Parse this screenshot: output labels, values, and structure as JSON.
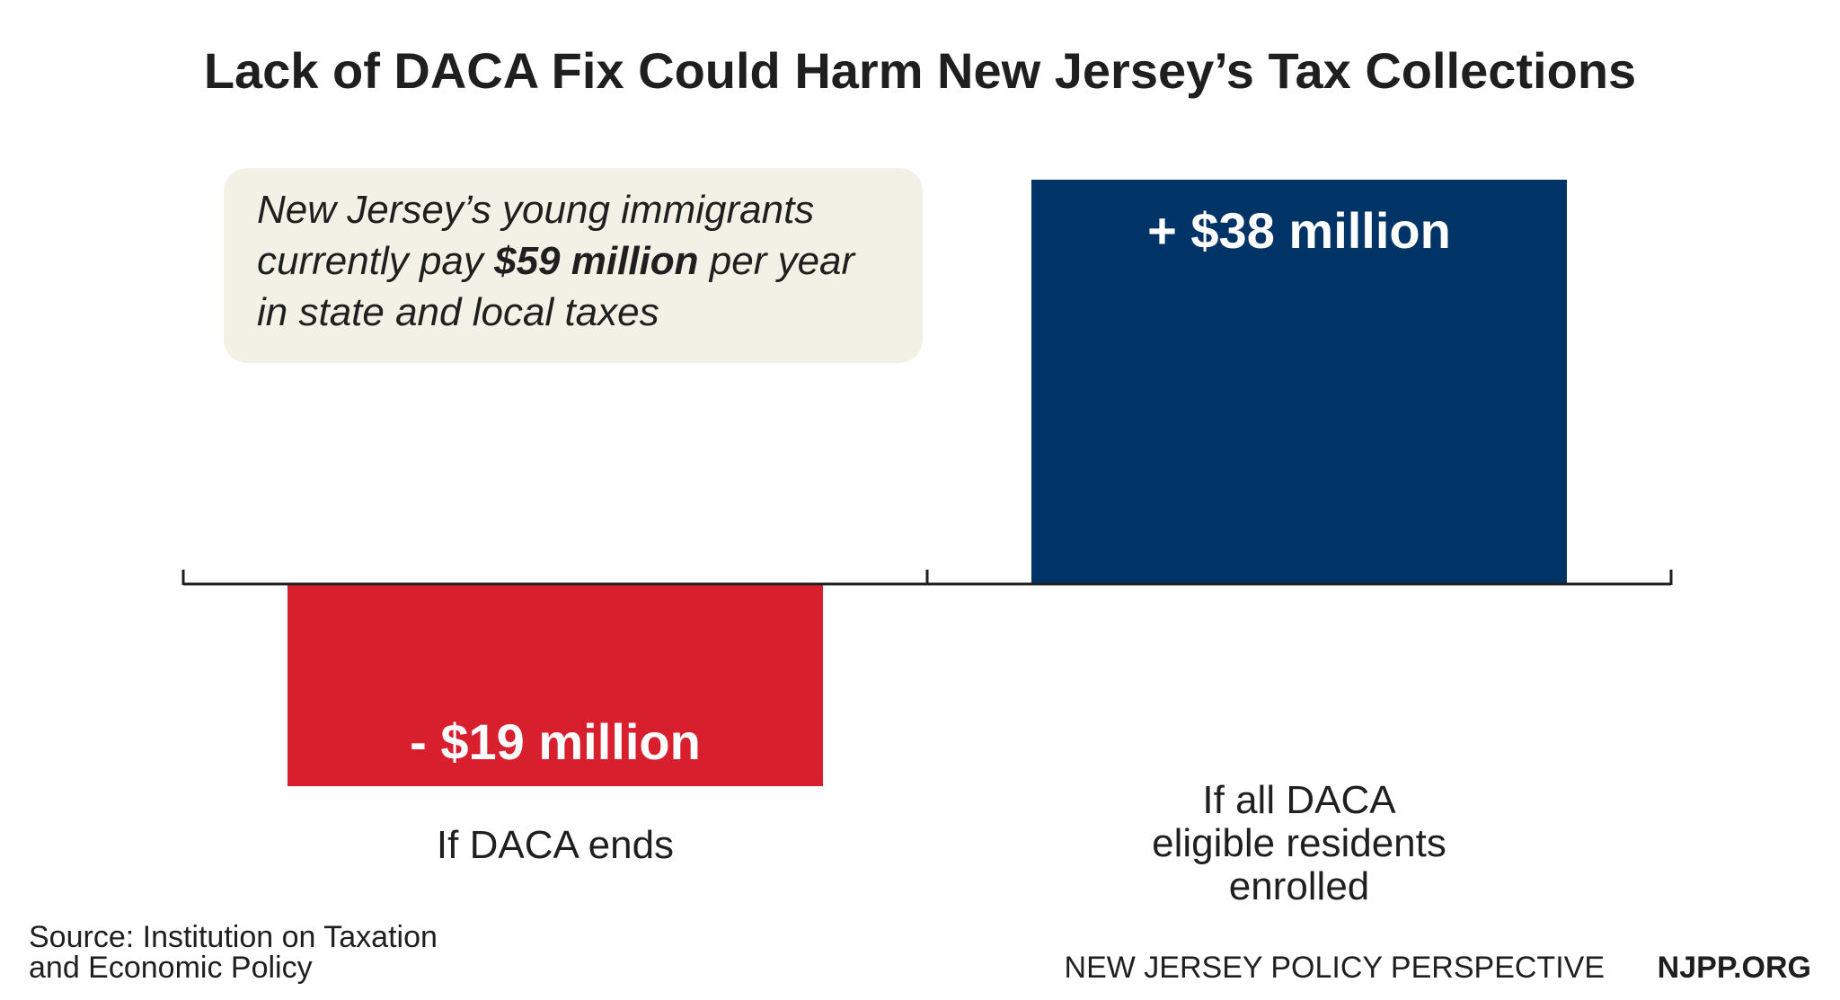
{
  "chart_data": {
    "type": "bar",
    "title": "Lack of DACA Fix Could Harm New Jersey’s Tax Collections",
    "categories": [
      "If DACA ends",
      "If all DACA eligible residents enrolled"
    ],
    "category_label_lines": [
      [
        "If DACA ends"
      ],
      [
        "If all DACA",
        "eligible residents",
        "enrolled"
      ]
    ],
    "values": [
      -19,
      38
    ],
    "value_labels": [
      "- $19 million",
      "+ $38 million"
    ],
    "unit": "million USD",
    "ylim": [
      -19,
      38
    ],
    "bar_colors": [
      "#d71f2e",
      "#003366"
    ],
    "axis_color": "#1f1f1f",
    "grid": false,
    "legend": "none"
  },
  "callout": {
    "line1": "New Jersey’s young immigrants",
    "line2_pre": "currently pay ",
    "line2_bold": "$59 million",
    "line2_post": " per year",
    "line3": "in state and local taxes",
    "background": "#f3f0e6"
  },
  "footer": {
    "source_line1": "Source: Institution on Taxation",
    "source_line2": "and Economic Policy",
    "org_name": "NEW JERSEY POLICY PERSPECTIVE",
    "org_url": "NJPP.ORG"
  }
}
